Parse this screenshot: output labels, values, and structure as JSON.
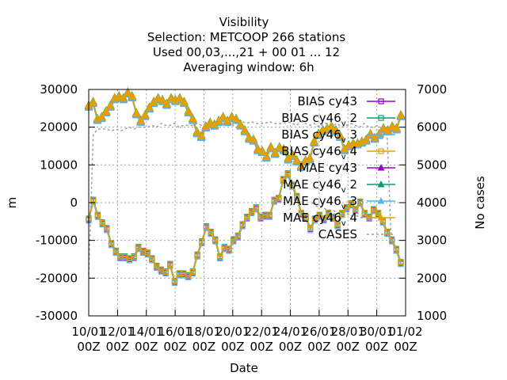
{
  "chart_data": {
    "type": "line",
    "title_lines": [
      "Visibility",
      "Selection: METCOOP    266 stations",
      "Used  00,03,...,21  + 00 01 ... 12",
      "Averaging window:  6h"
    ],
    "xlabel": "Date",
    "ylabel": "m",
    "y2label": "No cases",
    "ylim": [
      -30000,
      30000
    ],
    "y2lim": [
      1000,
      7000
    ],
    "yticks": [
      "30000",
      "20000",
      "10000",
      "0",
      "-10000",
      "-20000",
      "-30000"
    ],
    "y2ticks": [
      "7000",
      "6000",
      "5000",
      "4000",
      "3000",
      "2000",
      "1000"
    ],
    "xtick_top": [
      "10/01",
      "12/01",
      "14/01",
      "16/01",
      "18/01",
      "20/01",
      "22/01",
      "24/01",
      "26/01",
      "28/01",
      "30/01",
      "01/02"
    ],
    "xtick_bottom": [
      "00Z",
      "00Z",
      "00Z",
      "00Z",
      "00Z",
      "00Z",
      "00Z",
      "00Z",
      "00Z",
      "00Z",
      "00Z",
      "00Z"
    ],
    "x_days_from_1001": [
      0,
      0.25,
      0.5,
      0.75,
      1,
      1.25,
      1.5,
      1.75,
      2,
      2.25,
      2.5,
      2.75,
      3,
      3.25,
      3.5,
      3.75,
      4,
      4.25,
      4.5,
      4.75,
      5,
      5.25,
      5.5,
      5.75,
      6,
      6.25,
      6.5,
      6.75,
      7,
      7.25,
      7.5,
      7.75,
      8,
      8.25,
      8.5,
      8.75,
      9,
      9.25,
      9.5,
      9.75,
      10,
      10.25,
      10.5,
      10.75,
      11,
      11.25,
      11.5,
      11.75,
      12,
      12.25,
      12.5,
      12.75,
      13,
      13.25,
      13.5,
      13.75,
      14,
      14.25,
      14.5,
      14.75,
      15,
      15.25,
      15.5,
      15.75,
      16,
      16.25,
      16.5,
      16.75,
      17,
      17.25,
      17.5,
      17.75,
      18,
      18.25,
      18.5,
      18.75,
      19,
      19.25,
      19.5,
      19.75,
      20,
      20.25,
      20.5,
      20.75,
      21,
      21.25,
      21.5,
      21.75,
      22
    ],
    "mae": [
      25500,
      26500,
      22000,
      22500,
      24000,
      25500,
      27500,
      28000,
      27500,
      29000,
      28000,
      23500,
      21500,
      23000,
      25000,
      26500,
      27500,
      27000,
      26000,
      27500,
      27000,
      27500,
      26500,
      24000,
      22000,
      18500,
      17500,
      20000,
      21000,
      20500,
      21500,
      22500,
      21500,
      22500,
      22000,
      20500,
      19000,
      17000,
      16500,
      14000,
      13500,
      12000,
      14500,
      13000,
      14500,
      14000,
      11500,
      12500,
      11000,
      9500,
      11000,
      11500,
      16000,
      18000,
      19000,
      19500,
      20000,
      19000,
      17500,
      14000,
      15000,
      15500,
      15500,
      16000,
      16500,
      18000,
      17000,
      18000,
      19500,
      19000,
      20000,
      19500,
      23000
    ],
    "bias": [
      -4500,
      500,
      -3500,
      -5500,
      -7000,
      -11000,
      -13000,
      -14500,
      -14500,
      -15000,
      -14500,
      -12000,
      -13000,
      -13500,
      -15000,
      -17000,
      -18000,
      -18500,
      -16500,
      -21000,
      -19000,
      -19000,
      -19500,
      -18500,
      -14000,
      -10500,
      -6500,
      -8000,
      -10000,
      -14500,
      -12000,
      -12500,
      -10000,
      -9000,
      -6000,
      -4000,
      -2500,
      -1500,
      -4000,
      -3500,
      -3500,
      500,
      1000,
      6000,
      7500,
      4500,
      1500,
      -3000,
      -4000,
      -7000,
      -4500,
      -3500,
      -4500,
      -3000,
      -4000,
      -6000,
      -3000,
      -1500,
      -500,
      -2000,
      0,
      -3000,
      -4000,
      -2000,
      -3000,
      -5000,
      -8000,
      -10000,
      -12500,
      -16000
    ],
    "cases": [
      2100,
      5800,
      5950,
      5950,
      5950,
      5900,
      5950,
      5900,
      5950,
      6000,
      5950,
      6000,
      6000,
      6000,
      6050,
      6000,
      6100,
      6050,
      6050,
      6100,
      6000,
      6050,
      6050,
      6050,
      6100,
      6050,
      6100,
      6150,
      6100,
      6150,
      6050,
      6150,
      6050,
      6200,
      6150,
      6100,
      6150,
      6100,
      6100,
      6100,
      6150,
      6100,
      6100,
      6100,
      6150,
      6100,
      6050,
      6150,
      6100,
      6050,
      6100,
      6000,
      6100,
      6100,
      6050,
      6100,
      6000,
      6050,
      6100,
      6050,
      6000,
      6100,
      6000,
      6000,
      6050,
      5950,
      6000,
      2900
    ],
    "cases_low": [
      4000,
      3900,
      3900,
      3800,
      3800,
      3750,
      3700,
      3700,
      3650,
      3650,
      3600,
      3650,
      3600,
      3600
    ],
    "series": [
      {
        "name": "BIAS cy43",
        "color": "#9400d3",
        "marker": "square"
      },
      {
        "name": "BIAS cy46_v_2",
        "color": "#009e73",
        "marker": "square"
      },
      {
        "name": "BIAS cy46_v_3",
        "color": "#56b4e9",
        "marker": "square"
      },
      {
        "name": "BIAS cy46_v_4",
        "color": "#e69f00",
        "marker": "square"
      },
      {
        "name": "MAE cy43",
        "color": "#9400d3",
        "marker": "triangle"
      },
      {
        "name": "MAE cy46_v_2",
        "color": "#009e73",
        "marker": "triangle"
      },
      {
        "name": "MAE cy46_v_3",
        "color": "#56b4e9",
        "marker": "triangle"
      },
      {
        "name": "MAE cy46_v_4",
        "color": "#e69f00",
        "marker": "triangle"
      },
      {
        "name": "CASES",
        "color": "#a0a0a0",
        "marker": "none"
      }
    ],
    "legend": {
      "labels": [
        "BIAS cy43",
        "BIAS cy46",
        "BIAS cy46",
        "BIAS cy46",
        "MAE cy43",
        "MAE cy46",
        "MAE cy46",
        "MAE cy46",
        "CASES"
      ],
      "subs": [
        "",
        "v",
        "v",
        "v",
        "",
        "v",
        "v",
        "v",
        ""
      ],
      "tails": [
        "",
        "2",
        "3",
        "4",
        "",
        "2",
        "3",
        "4",
        ""
      ]
    },
    "grid": true,
    "legend_placement": "top-right"
  }
}
